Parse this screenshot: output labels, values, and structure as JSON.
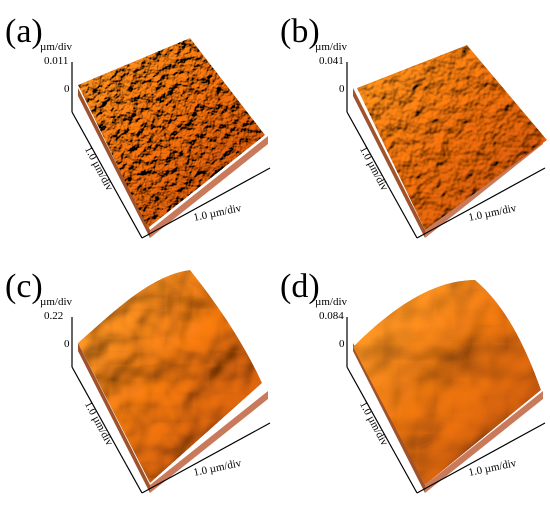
{
  "panels": [
    {
      "label": "(a)",
      "z_unit": "µm/div",
      "z_max": 0.011,
      "z_zero": 0,
      "y_axis": "1.0 µm/div",
      "x_axis": "1.0 µm/div"
    },
    {
      "label": "(b)",
      "z_unit": "µm/div",
      "z_max": 0.041,
      "z_zero": 0,
      "y_axis": "1.0 µm/div",
      "x_axis": "1.0 µm/div"
    },
    {
      "label": "(c)",
      "z_unit": "µm/div",
      "z_max": 0.22,
      "z_zero": 0,
      "y_axis": "1.0 µm/div",
      "x_axis": "1.0 µm/div"
    },
    {
      "label": "(d)",
      "z_unit": "µm/div",
      "z_max": 0.084,
      "z_zero": 0,
      "y_axis": "1.0 µm/div",
      "x_axis": "1.0 µm/div"
    }
  ]
}
